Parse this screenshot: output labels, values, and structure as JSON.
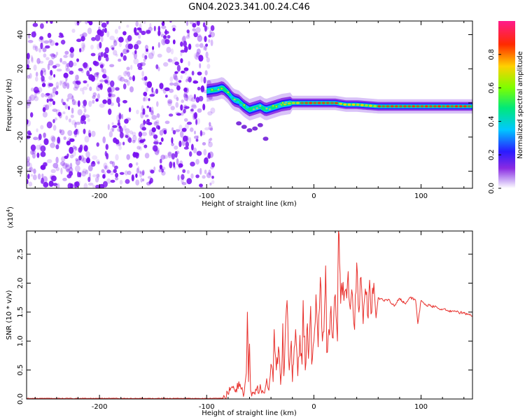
{
  "title": "GN04.2023.341.00.24.C46",
  "colors": {
    "snr_line": "#e8302c",
    "cloud_purple": "#7a12f0",
    "rainbow": [
      "#ffffff",
      "#8a2be2",
      "#2a1bff",
      "#00c8ff",
      "#00e87a",
      "#7cff00",
      "#ffd000",
      "#ff2a00",
      "#ff0080"
    ]
  },
  "chart_data": [
    {
      "type": "heatmap",
      "name": "spectrogram",
      "xlabel": "Height of straight line (km)",
      "ylabel": "Frequency (Hz)",
      "xlim": [
        -268,
        148
      ],
      "ylim": [
        -50,
        48
      ],
      "xticks": [
        -200,
        -100,
        0,
        100
      ],
      "yticks": [
        -40,
        -20,
        0,
        20,
        40
      ],
      "ridge": [
        [
          -100,
          7
        ],
        [
          -90,
          8
        ],
        [
          -85,
          9
        ],
        [
          -80,
          6
        ],
        [
          -75,
          2
        ],
        [
          -70,
          1
        ],
        [
          -65,
          -2
        ],
        [
          -60,
          -4
        ],
        [
          -55,
          -3
        ],
        [
          -50,
          -2
        ],
        [
          -45,
          -4
        ],
        [
          -40,
          -3
        ],
        [
          -35,
          -2
        ],
        [
          -30,
          -1
        ],
        [
          -20,
          0
        ],
        [
          -10,
          0
        ],
        [
          0,
          0
        ],
        [
          10,
          0
        ],
        [
          20,
          0
        ],
        [
          30,
          -1
        ],
        [
          40,
          -1
        ],
        [
          60,
          -2
        ],
        [
          80,
          -2
        ],
        [
          100,
          -2
        ],
        [
          120,
          -2
        ],
        [
          148,
          -2
        ]
      ],
      "noise_region_x": [
        -268,
        -98
      ],
      "colorbar": {
        "label": "Normalized spectral amplitude",
        "range": [
          0,
          1
        ],
        "ticks": [
          "0.0",
          "0.2",
          "0.4",
          "0.6",
          "0.8"
        ]
      }
    },
    {
      "type": "line",
      "name": "snr",
      "xlabel": "Height of straight line (km)",
      "ylabel": "SNR (10 * v/v)",
      "y_multiplier": "(x10",
      "y_multiplier_exp": "4",
      "y_multiplier_close": ")",
      "xlim": [
        -268,
        148
      ],
      "ylim": [
        0,
        2.9
      ],
      "xticks": [
        -200,
        -100,
        0,
        100
      ],
      "yticks": [
        "0.0",
        "0.5",
        "1.0",
        "1.5",
        "2.0",
        "2.5"
      ],
      "series": [
        {
          "x": [
            -268,
            -250,
            -200,
            -150,
            -100,
            -90,
            -83,
            -80,
            -75,
            -72,
            -70,
            -67,
            -65,
            -63,
            -62,
            -61,
            -60,
            -59,
            -58,
            -56,
            -55,
            -53,
            -52,
            -50,
            -48,
            -46,
            -44,
            -42,
            -40,
            -38,
            -37,
            -35,
            -33,
            -31,
            -30,
            -29,
            -28,
            -27,
            -25,
            -23,
            -21,
            -20,
            -19,
            -17,
            -15,
            -13,
            -11,
            -10,
            -8,
            -6,
            -5,
            -3,
            -2,
            0,
            2,
            4,
            6,
            8,
            10,
            11,
            12,
            14,
            16,
            18,
            20,
            22,
            23,
            24,
            25,
            26,
            28,
            30,
            32,
            34,
            36,
            38,
            40,
            42,
            44,
            46,
            48,
            50,
            52,
            54,
            56,
            58,
            60,
            65,
            70,
            75,
            80,
            85,
            90,
            95,
            97,
            100,
            105,
            110,
            115,
            120,
            125,
            130,
            135,
            140,
            145,
            148
          ],
          "y": [
            0.01,
            0.01,
            0.01,
            0.01,
            0.01,
            0.01,
            0.02,
            0.08,
            0.22,
            0.12,
            0.3,
            0.2,
            0.1,
            0.45,
            1.5,
            0.3,
            0.95,
            0.15,
            0.05,
            0.12,
            0.08,
            0.2,
            0.1,
            0.25,
            0.15,
            0.1,
            0.35,
            0.15,
            0.6,
            0.3,
            1.2,
            0.5,
            0.9,
            0.25,
            0.45,
            1.3,
            0.4,
            0.9,
            1.7,
            0.5,
            1.0,
            0.3,
            0.6,
            1.2,
            0.4,
            1.1,
            0.6,
            1.7,
            0.5,
            1.3,
            0.7,
            1.6,
            0.6,
            1.0,
            1.8,
            0.9,
            2.1,
            1.0,
            1.6,
            2.3,
            0.8,
            1.2,
            1.6,
            1.05,
            1.8,
            1.0,
            2.9,
            2.35,
            1.65,
            2.0,
            1.7,
            1.9,
            2.2,
            1.55,
            1.8,
            1.2,
            2.35,
            1.5,
            2.1,
            1.3,
            1.9,
            1.45,
            2.05,
            1.5,
            2.0,
            1.4,
            1.75,
            1.7,
            1.72,
            1.6,
            1.74,
            1.65,
            1.75,
            1.7,
            1.3,
            1.7,
            1.62,
            1.6,
            1.58,
            1.55,
            1.52,
            1.52,
            1.5,
            1.48,
            1.45,
            1.44
          ]
        }
      ]
    }
  ]
}
